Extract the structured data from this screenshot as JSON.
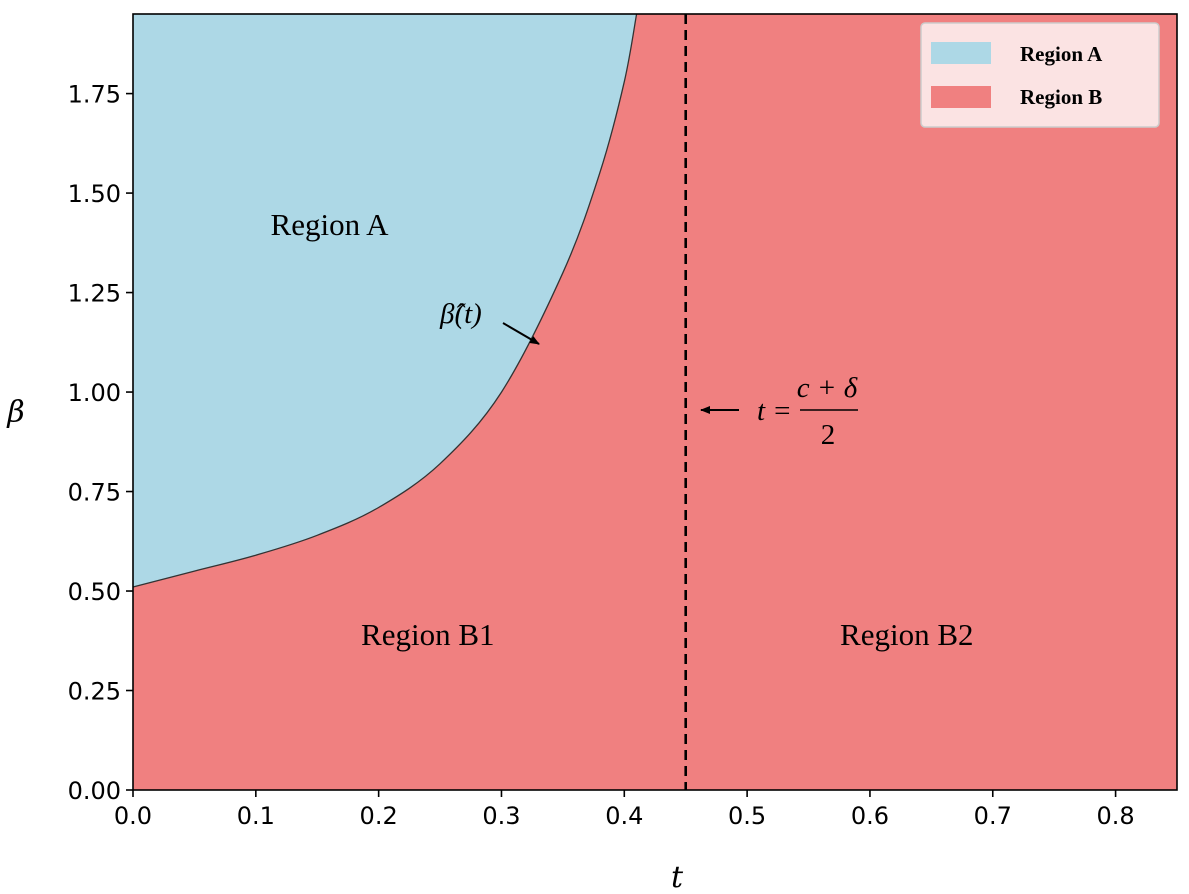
{
  "chart_data": {
    "type": "area",
    "xlabel": "t",
    "ylabel": "β",
    "xlim": [
      0,
      0.85
    ],
    "ylim": [
      0,
      1.95
    ],
    "x_ticks": [
      "0.0",
      "0.1",
      "0.2",
      "0.3",
      "0.4",
      "0.5",
      "0.6",
      "0.7",
      "0.8"
    ],
    "y_ticks": [
      "0.00",
      "0.25",
      "0.50",
      "0.75",
      "1.00",
      "1.25",
      "1.50",
      "1.75"
    ],
    "grid": false,
    "legend": {
      "placement": "top-right",
      "entries": [
        {
          "label": "Region A",
          "color": "#add8e6"
        },
        {
          "label": "Region B",
          "color": "#f08080"
        }
      ]
    },
    "boundary_curve": {
      "label": "β̂(t)",
      "x": [
        0.0,
        0.05,
        0.1,
        0.15,
        0.2,
        0.25,
        0.3,
        0.35,
        0.38,
        0.4,
        0.41
      ],
      "y": [
        0.51,
        0.55,
        0.59,
        0.64,
        0.71,
        0.82,
        1.0,
        1.3,
        1.55,
        1.78,
        1.95
      ]
    },
    "vertical_line": {
      "x": 0.45,
      "style": "dashed",
      "label_lhs": "t =",
      "label_numerator": "c + δ",
      "label_denominator": "2"
    },
    "annotations": [
      {
        "text": "Region A",
        "x": 0.16,
        "y": 1.42
      },
      {
        "text": "Region B1",
        "x": 0.24,
        "y": 0.39
      },
      {
        "text": "Region B2",
        "x": 0.63,
        "y": 0.39
      }
    ]
  }
}
